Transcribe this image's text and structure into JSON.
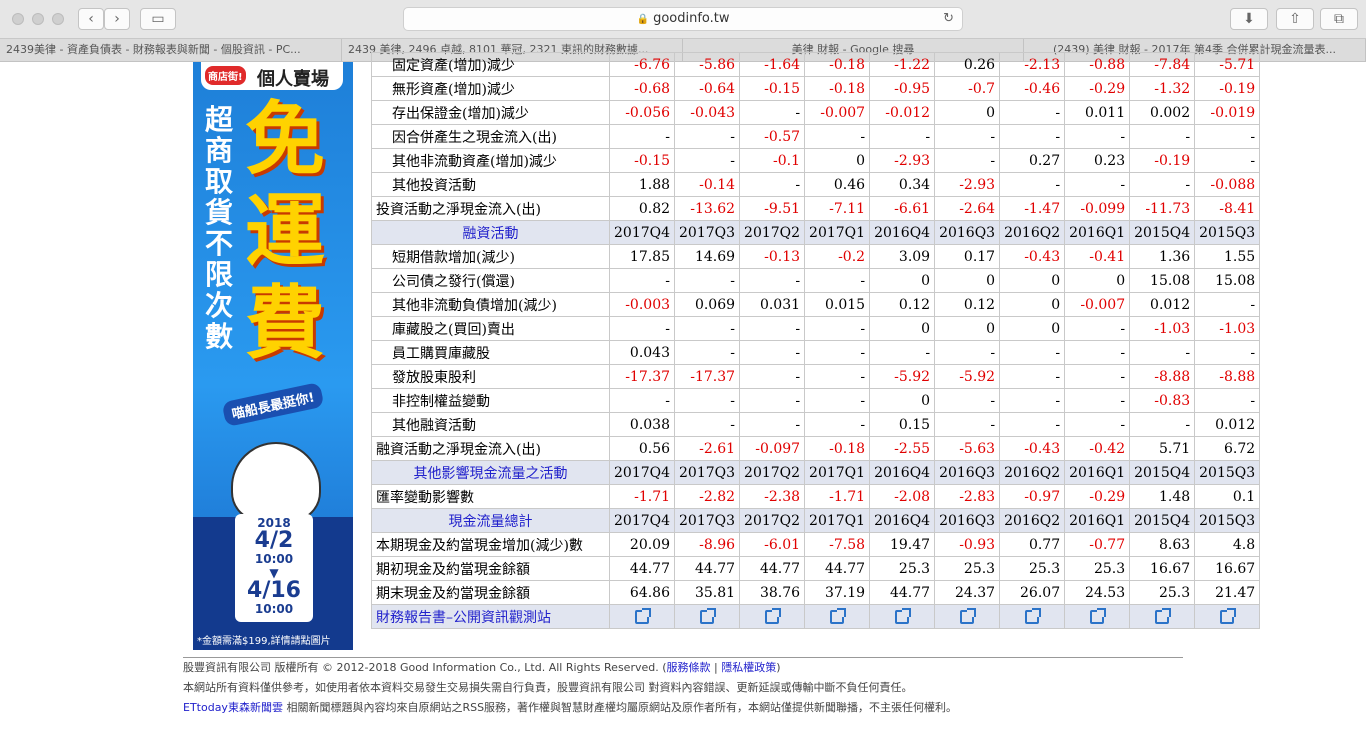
{
  "browser": {
    "url": "goodinfo.tw",
    "tabs": [
      "2439美律 - 資產負債表 - 財務報表與新聞 - 個股資訊 - PC...",
      "2439 美律, 2496 卓越, 8101 華冠, 2321 東訊的財務數據...",
      "美律 財報 - Google 搜尋",
      "(2439) 美律 財報 - 2017年 第4季 合併累計現金流量表..."
    ]
  },
  "ad": {
    "badge": "商店街!",
    "brand": "個人賣場",
    "vertical_left": "超商取貨 不限次數",
    "vertical_big": "免運費",
    "ribbon": "喵船長最挺你!",
    "year": "2018",
    "date_start": "4/2",
    "time_start": "10:00",
    "date_end": "4/16",
    "time_end": "10:00",
    "note": "*金額需滿$199,詳情請點圖片"
  },
  "table": {
    "header_cols": [
      "2017Q4",
      "2017Q3",
      "2017Q2",
      "2017Q1",
      "2016Q4",
      "2016Q3",
      "2016Q2",
      "2016Q1",
      "2015Q4",
      "2015Q3"
    ],
    "rows": [
      {
        "type": "data",
        "label": "固定資產(增加)減少",
        "values": [
          "-6.76",
          "-5.86",
          "-1.64",
          "-0.18",
          "-1.22",
          "0.26",
          "-2.13",
          "-0.88",
          "-7.84",
          "-5.71"
        ]
      },
      {
        "type": "data",
        "label": "無形資產(增加)減少",
        "values": [
          "-0.68",
          "-0.64",
          "-0.15",
          "-0.18",
          "-0.95",
          "-0.7",
          "-0.46",
          "-0.29",
          "-1.32",
          "-0.19"
        ]
      },
      {
        "type": "data",
        "label": "存出保證金(增加)減少",
        "values": [
          "-0.056",
          "-0.043",
          "-",
          "-0.007",
          "-0.012",
          "0",
          "-",
          "0.011",
          "0.002",
          "-0.019"
        ]
      },
      {
        "type": "data",
        "label": "因合併產生之現金流入(出)",
        "values": [
          "-",
          "-",
          "-0.57",
          "-",
          "-",
          "-",
          "-",
          "-",
          "-",
          "-"
        ]
      },
      {
        "type": "data",
        "label": "其他非流動資產(增加)減少",
        "values": [
          "-0.15",
          "-",
          "-0.1",
          "0",
          "-2.93",
          "-",
          "0.27",
          "0.23",
          "-0.19",
          "-"
        ]
      },
      {
        "type": "data",
        "label": "其他投資活動",
        "values": [
          "1.88",
          "-0.14",
          "-",
          "0.46",
          "0.34",
          "-2.93",
          "-",
          "-",
          "-",
          "-0.088"
        ]
      },
      {
        "type": "total",
        "label": "投資活動之淨現金流入(出)",
        "values": [
          "0.82",
          "-13.62",
          "-9.51",
          "-7.11",
          "-6.61",
          "-2.64",
          "-1.47",
          "-0.099",
          "-11.73",
          "-8.41"
        ]
      },
      {
        "type": "header",
        "label": "融資活動"
      },
      {
        "type": "data",
        "label": "短期借款增加(減少)",
        "values": [
          "17.85",
          "14.69",
          "-0.13",
          "-0.2",
          "3.09",
          "0.17",
          "-0.43",
          "-0.41",
          "1.36",
          "1.55"
        ]
      },
      {
        "type": "data",
        "label": "公司債之發行(償還)",
        "values": [
          "-",
          "-",
          "-",
          "-",
          "0",
          "0",
          "0",
          "0",
          "15.08",
          "15.08"
        ]
      },
      {
        "type": "data",
        "label": "其他非流動負債增加(減少)",
        "values": [
          "-0.003",
          "0.069",
          "0.031",
          "0.015",
          "0.12",
          "0.12",
          "0",
          "-0.007",
          "0.012",
          "-"
        ]
      },
      {
        "type": "data",
        "label": "庫藏股之(買回)賣出",
        "values": [
          "-",
          "-",
          "-",
          "-",
          "0",
          "0",
          "0",
          "-",
          "-1.03",
          "-1.03"
        ]
      },
      {
        "type": "data",
        "label": "員工購買庫藏股",
        "values": [
          "0.043",
          "-",
          "-",
          "-",
          "-",
          "-",
          "-",
          "-",
          "-",
          "-"
        ]
      },
      {
        "type": "data",
        "label": "發放股東股利",
        "values": [
          "-17.37",
          "-17.37",
          "-",
          "-",
          "-5.92",
          "-5.92",
          "-",
          "-",
          "-8.88",
          "-8.88"
        ]
      },
      {
        "type": "data",
        "label": "非控制權益變動",
        "values": [
          "-",
          "-",
          "-",
          "-",
          "0",
          "-",
          "-",
          "-",
          "-0.83",
          "-"
        ]
      },
      {
        "type": "data",
        "label": "其他融資活動",
        "values": [
          "0.038",
          "-",
          "-",
          "-",
          "0.15",
          "-",
          "-",
          "-",
          "-",
          "0.012"
        ]
      },
      {
        "type": "total",
        "label": "融資活動之淨現金流入(出)",
        "values": [
          "0.56",
          "-2.61",
          "-0.097",
          "-0.18",
          "-2.55",
          "-5.63",
          "-0.43",
          "-0.42",
          "5.71",
          "6.72"
        ]
      },
      {
        "type": "header",
        "label": "其他影響現金流量之活動"
      },
      {
        "type": "total",
        "label": "匯率變動影響數",
        "values": [
          "-1.71",
          "-2.82",
          "-2.38",
          "-1.71",
          "-2.08",
          "-2.83",
          "-0.97",
          "-0.29",
          "1.48",
          "0.1"
        ]
      },
      {
        "type": "header",
        "label": "現金流量總計"
      },
      {
        "type": "total",
        "label": "本期現金及約當現金增加(減少)數",
        "values": [
          "20.09",
          "-8.96",
          "-6.01",
          "-7.58",
          "19.47",
          "-0.93",
          "0.77",
          "-0.77",
          "8.63",
          "4.8"
        ]
      },
      {
        "type": "total",
        "label": "期初現金及約當現金餘額",
        "values": [
          "44.77",
          "44.77",
          "44.77",
          "44.77",
          "25.3",
          "25.3",
          "25.3",
          "25.3",
          "16.67",
          "16.67"
        ]
      },
      {
        "type": "total",
        "label": "期末現金及約當現金餘額",
        "values": [
          "64.86",
          "35.81",
          "38.76",
          "37.19",
          "44.77",
          "24.37",
          "26.07",
          "24.53",
          "25.3",
          "21.47"
        ]
      },
      {
        "type": "link",
        "label": "財務報告書–公開資訊觀測站"
      }
    ]
  },
  "footer": {
    "line1_prefix": "股豐資訊有限公司 版權所有 © 2012-2018 Good Information Co., Ltd. All Rights Reserved. (",
    "terms": "服務條款",
    "sep": " | ",
    "privacy": "隱私權政策",
    "line1_suffix": ")",
    "line2": "本網站所有資料僅供參考，如使用者依本資料交易發生交易損失需自行負責，股豐資訊有限公司 對資料內容錯誤、更新延誤或傳輸中斷不負任何責任。",
    "ettoday": "ETtoday東森新聞雲",
    "line3": " 相關新聞標題與內容均來自原網站之RSS服務，著作權與智慧財產權均屬原網站及原作者所有，本網站僅提供新聞聯播，不主張任何權利。"
  }
}
